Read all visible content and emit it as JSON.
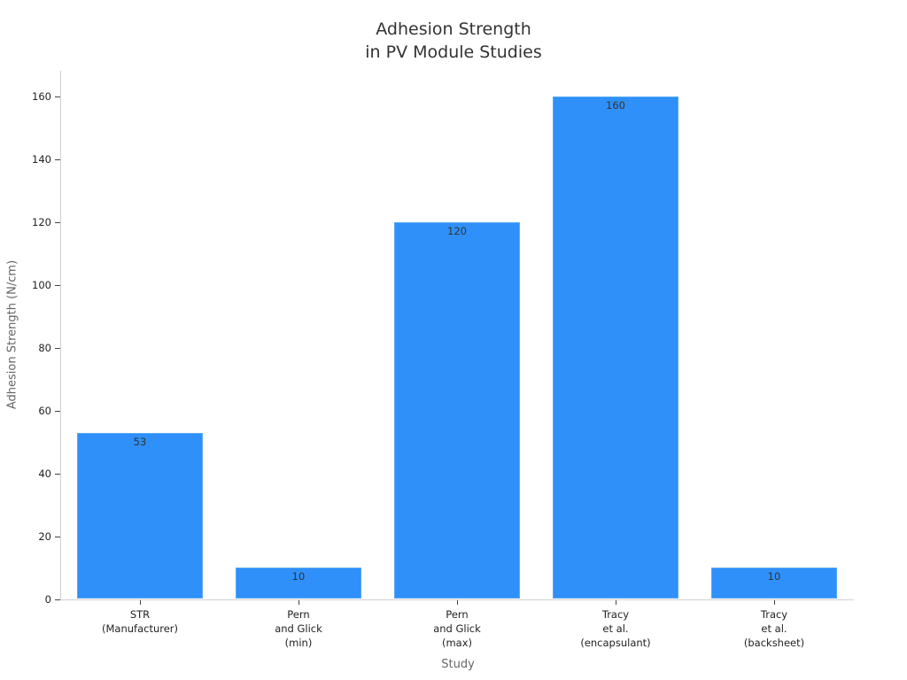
{
  "chart_data": {
    "type": "bar",
    "title": "Adhesion Strength in PV Module Studies",
    "title_lines": [
      "Adhesion Strength",
      "in PV Module Studies"
    ],
    "xlabel": "Study",
    "ylabel": "Adhesion Strength (N/cm)",
    "categories": [
      "STR (Manufacturer)",
      "Pern and Glick (min)",
      "Pern and Glick (max)",
      "Tracy et al. (encapsulant)",
      "Tracy et al. (backsheet)"
    ],
    "category_lines": [
      [
        "STR",
        "(Manufacturer)"
      ],
      [
        "Pern",
        "and Glick",
        "(min)"
      ],
      [
        "Pern",
        "and Glick",
        "(max)"
      ],
      [
        "Tracy",
        "et al.",
        "(encapsulant)"
      ],
      [
        "Tracy",
        "et al.",
        "(backsheet)"
      ]
    ],
    "values": [
      53,
      10,
      120,
      160,
      10
    ],
    "data_labels": [
      "53",
      "10",
      "120",
      "160",
      "10"
    ],
    "yticks": [
      0,
      20,
      40,
      60,
      80,
      100,
      120,
      140,
      160
    ],
    "ylim": [
      0,
      168
    ],
    "grid": false,
    "legend": null,
    "colors": {
      "bar": "#2e90f8",
      "axis": "#d0d0d0",
      "text": "#333333"
    }
  }
}
